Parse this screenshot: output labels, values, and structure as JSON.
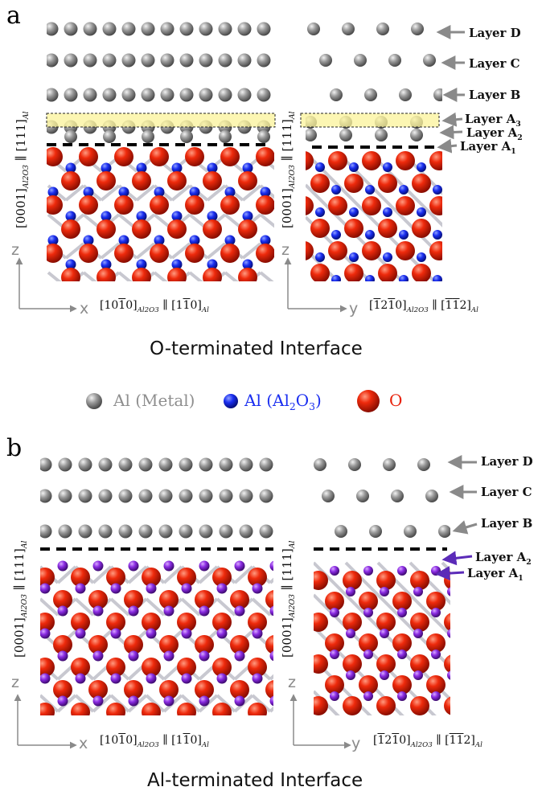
{
  "panel_a": {
    "letter": "a",
    "layers": [
      "Layer D",
      "Layer C",
      "Layer B",
      "Layer A",
      "Layer A",
      "Layer A"
    ],
    "layer_subs": [
      "",
      "",
      "",
      "3",
      "2",
      "1"
    ],
    "axis_x": "x",
    "axis_y": "y",
    "axis_z": "z",
    "dir_left_h": "[10 1 0]",
    "dir_right_h": "[1 2 1 0]",
    "dir_left_h_al": "[1 1 0]",
    "dir_right_h_al": "[1 1 2]",
    "dir_v": "[0001]",
    "dir_v_al": "[111]",
    "sub_al2o3": "Al2O3",
    "sub_al": "Al",
    "title": "O-terminated Interface"
  },
  "legend": {
    "metal": "Al (Metal)",
    "al2o3_prefix": "Al (Al",
    "al2o3_sub1": "2",
    "al2o3_mid": "O",
    "al2o3_sub2": "3",
    "al2o3_suffix": ")",
    "oxygen": "O",
    "colors": {
      "metal": "#8e8e8e",
      "al2o3": "#1a2ef0",
      "oxygen": "#e8210a",
      "al_term": "#8a2be2"
    }
  },
  "panel_b": {
    "letter": "b",
    "layers": [
      "Layer D",
      "Layer C",
      "Layer B",
      "Layer A",
      "Layer A"
    ],
    "layer_subs": [
      "",
      "",
      "",
      "2",
      "1"
    ],
    "axis_x": "x",
    "axis_y": "y",
    "axis_z": "z",
    "title": "Al-terminated Interface"
  }
}
